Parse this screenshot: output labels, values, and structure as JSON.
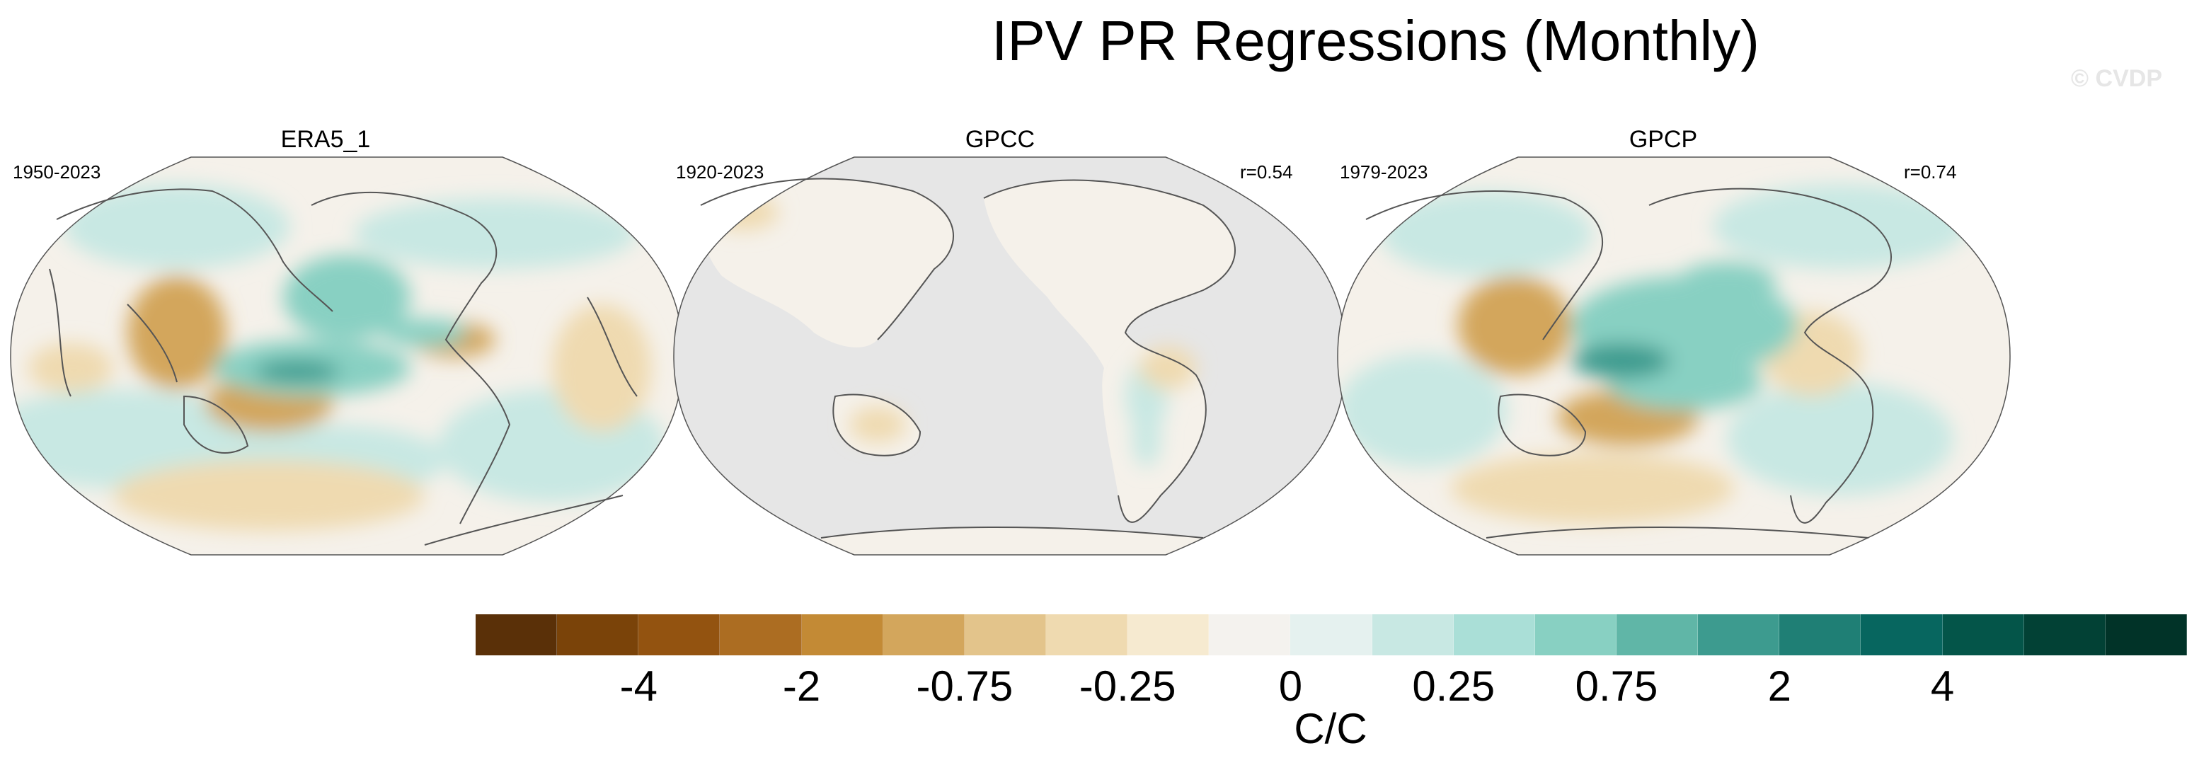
{
  "title": "IPV PR Regressions (Monthly)",
  "watermark": "© CVDP",
  "panels": [
    {
      "name": "ERA5_1",
      "period": "1950-2023",
      "r": ""
    },
    {
      "name": "GPCC",
      "period": "1920-2023",
      "r": "r=0.54"
    },
    {
      "name": "GPCP",
      "period": "1979-2023",
      "r": "r=0.74"
    }
  ],
  "colorbar": {
    "colors": [
      "#5a3008",
      "#7a4309",
      "#935310",
      "#ac6d22",
      "#c38a35",
      "#d3a65c",
      "#e3c48b",
      "#efdab0",
      "#f6ead0",
      "#f4f2ee",
      "#e5f1ef",
      "#c8e8e3",
      "#aadfd7",
      "#88d0c2",
      "#60b6a7",
      "#3d9b8f",
      "#1f7f75",
      "#07665f",
      "#045549",
      "#024135",
      "#013328"
    ],
    "tick_labels": [
      "-4",
      "-2",
      "-0.75",
      "-0.25",
      "0",
      "0.25",
      "0.75",
      "2",
      "4"
    ],
    "units": "C/C"
  },
  "map_colors": {
    "background": "#f5f1ea",
    "missing": "#e6e6e6",
    "coast": "#555555",
    "neg_light": "#efdab0",
    "neg_mid": "#d3a65c",
    "pos_light": "#c8e8e3",
    "pos_mid": "#88d0c2",
    "pos_strong": "#3d9b8f"
  }
}
